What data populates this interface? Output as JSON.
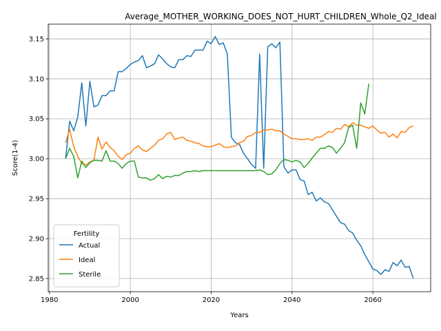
{
  "chart_data": {
    "type": "line",
    "title": "Average_MOTHER_WORKING_DOES_NOT_HURT_CHILDREN_Whole_Q2_Ideal",
    "xlabel": "Years",
    "ylabel": "Score(1-4)",
    "xlim": [
      1979.7,
      2074.3
    ],
    "ylim": [
      2.8335,
      3.1685
    ],
    "xticks": [
      1980,
      2000,
      2020,
      2040,
      2060
    ],
    "xtick_labels": [
      "1980",
      "2000",
      "2020",
      "2040",
      "2060"
    ],
    "yticks": [
      2.85,
      2.9,
      2.95,
      3.0,
      3.05,
      3.1,
      3.15
    ],
    "ytick_labels": [
      "2.85",
      "2.90",
      "2.95",
      "3.00",
      "3.05",
      "3.10",
      "3.15"
    ],
    "grid": true,
    "legend": {
      "title": "Fertility",
      "position": "lower-left"
    },
    "x": [
      1984,
      1985,
      1986,
      1987,
      1988,
      1989,
      1990,
      1991,
      1992,
      1993,
      1994,
      1995,
      1996,
      1997,
      1998,
      1999,
      2000,
      2001,
      2002,
      2003,
      2004,
      2005,
      2006,
      2007,
      2008,
      2009,
      2010,
      2011,
      2012,
      2013,
      2014,
      2015,
      2016,
      2017,
      2018,
      2019,
      2020,
      2021,
      2022,
      2023,
      2024,
      2025,
      2026,
      2027,
      2028,
      2029,
      2030,
      2031,
      2032,
      2033,
      2034,
      2035,
      2036,
      2037,
      2038,
      2039,
      2040,
      2041,
      2042,
      2043,
      2044,
      2045,
      2046,
      2047,
      2048,
      2049,
      2050,
      2051,
      2052,
      2053,
      2054,
      2055,
      2056,
      2057,
      2058,
      2059,
      2060,
      2061,
      2062,
      2063,
      2064,
      2065,
      2066,
      2067,
      2068,
      2069,
      2070
    ],
    "series": [
      {
        "name": "Actual",
        "color": "#1f77b4",
        "values": [
          3.0,
          3.047,
          3.035,
          3.052,
          3.095,
          3.041,
          3.097,
          3.065,
          3.067,
          3.079,
          3.079,
          3.085,
          3.085,
          3.109,
          3.109,
          3.113,
          3.118,
          3.121,
          3.123,
          3.129,
          3.114,
          3.116,
          3.119,
          3.13,
          3.125,
          3.119,
          3.115,
          3.114,
          3.124,
          3.124,
          3.129,
          3.128,
          3.136,
          3.136,
          3.136,
          3.147,
          3.144,
          3.153,
          3.143,
          3.145,
          3.131,
          3.027,
          3.02,
          3.018,
          3.007,
          3.0,
          2.993,
          2.988,
          3.131,
          2.988,
          3.14,
          3.144,
          3.139,
          3.146,
          2.99,
          2.982,
          2.986,
          2.986,
          2.974,
          2.972,
          2.955,
          2.958,
          2.947,
          2.951,
          2.946,
          2.944,
          2.936,
          2.928,
          2.92,
          2.918,
          2.91,
          2.907,
          2.898,
          2.891,
          2.88,
          2.871,
          2.862,
          2.86,
          2.855,
          2.861,
          2.859,
          2.87,
          2.866,
          2.873,
          2.864,
          2.865,
          2.85
        ]
      },
      {
        "name": "Ideal",
        "color": "#ff7f0e",
        "values": [
          3.02,
          3.037,
          3.015,
          3.003,
          2.994,
          2.992,
          2.996,
          2.998,
          3.027,
          3.012,
          3.021,
          3.014,
          3.01,
          3.003,
          2.999,
          3.005,
          3.007,
          3.013,
          3.016,
          3.011,
          3.009,
          3.013,
          3.017,
          3.023,
          3.025,
          3.031,
          3.033,
          3.024,
          3.026,
          3.027,
          3.023,
          3.022,
          3.02,
          3.019,
          3.016,
          3.015,
          3.015,
          3.017,
          3.019,
          3.015,
          3.014,
          3.015,
          3.016,
          3.02,
          3.022,
          3.028,
          3.029,
          3.033,
          3.033,
          3.036,
          3.036,
          3.037,
          3.035,
          3.035,
          3.031,
          3.028,
          3.025,
          3.025,
          3.024,
          3.024,
          3.025,
          3.023,
          3.027,
          3.027,
          3.03,
          3.034,
          3.033,
          3.038,
          3.037,
          3.043,
          3.04,
          3.045,
          3.042,
          3.042,
          3.04,
          3.038,
          3.041,
          3.036,
          3.032,
          3.033,
          3.027,
          3.031,
          3.026,
          3.034,
          3.033,
          3.039,
          3.041
        ]
      },
      {
        "name": "Sterile",
        "color": "#2ca02c",
        "values": [
          3.0,
          3.013,
          3.003,
          2.976,
          2.997,
          2.989,
          2.995,
          2.998,
          2.998,
          2.997,
          3.01,
          2.997,
          2.997,
          2.994,
          2.988,
          2.994,
          2.997,
          2.997,
          2.977,
          2.976,
          2.976,
          2.973,
          2.975,
          2.98,
          2.975,
          2.978,
          2.977,
          2.979,
          2.979,
          2.982,
          2.984,
          2.984,
          2.985,
          2.984,
          2.985,
          2.985,
          2.985,
          2.985,
          2.985,
          2.985,
          2.985,
          2.985,
          2.985,
          2.985,
          2.985,
          2.985,
          2.985,
          2.985,
          2.986,
          2.984,
          2.98,
          2.981,
          2.986,
          2.994,
          2.999,
          2.998,
          2.996,
          2.998,
          2.996,
          2.989,
          2.994,
          3.001,
          3.007,
          3.013,
          3.013,
          3.016,
          3.014,
          3.007,
          3.013,
          3.02,
          3.039,
          3.042,
          3.013,
          3.07,
          3.056,
          3.094,
          null,
          null,
          null,
          null,
          null,
          null,
          null,
          null,
          null,
          null,
          null
        ]
      }
    ]
  }
}
